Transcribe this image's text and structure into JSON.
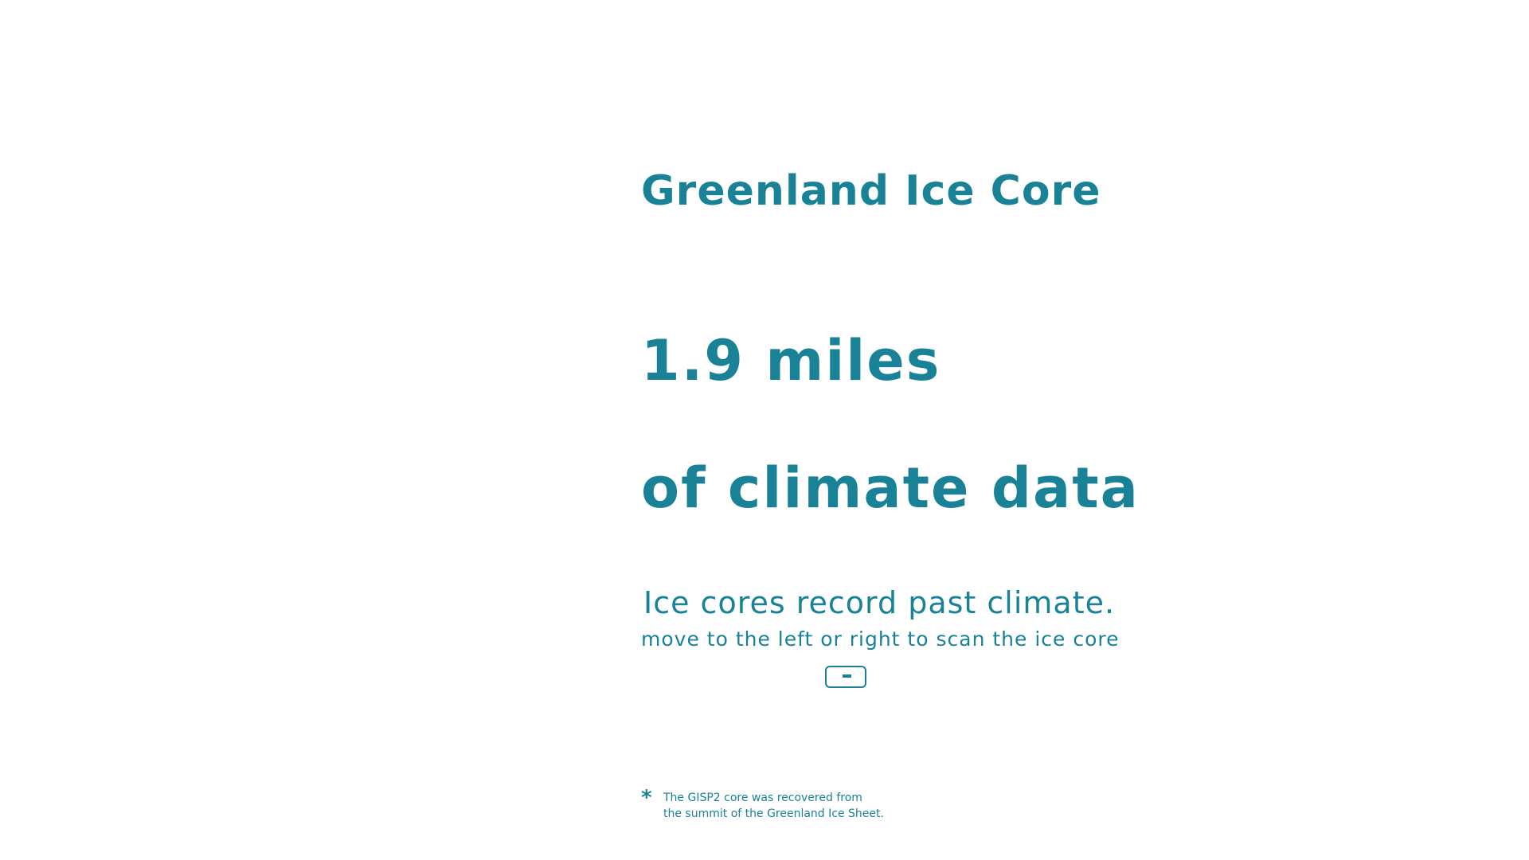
{
  "header": {
    "title": "Greenland Ice Core"
  },
  "hero": {
    "line1": "1.9 miles",
    "line2": "of climate data"
  },
  "intro": {
    "subtitle": "Ice cores record past climate.",
    "instruction": "move to the left or right to scan the ice core"
  },
  "scanner": {
    "icon": "slider-handle"
  },
  "footnote": {
    "marker": "*",
    "line1": "The GISP2 core was recovered from",
    "line2": "the summit of the Greenland Ice Sheet."
  },
  "colors": {
    "accent": "#1a8296",
    "background": "#ffffff"
  }
}
